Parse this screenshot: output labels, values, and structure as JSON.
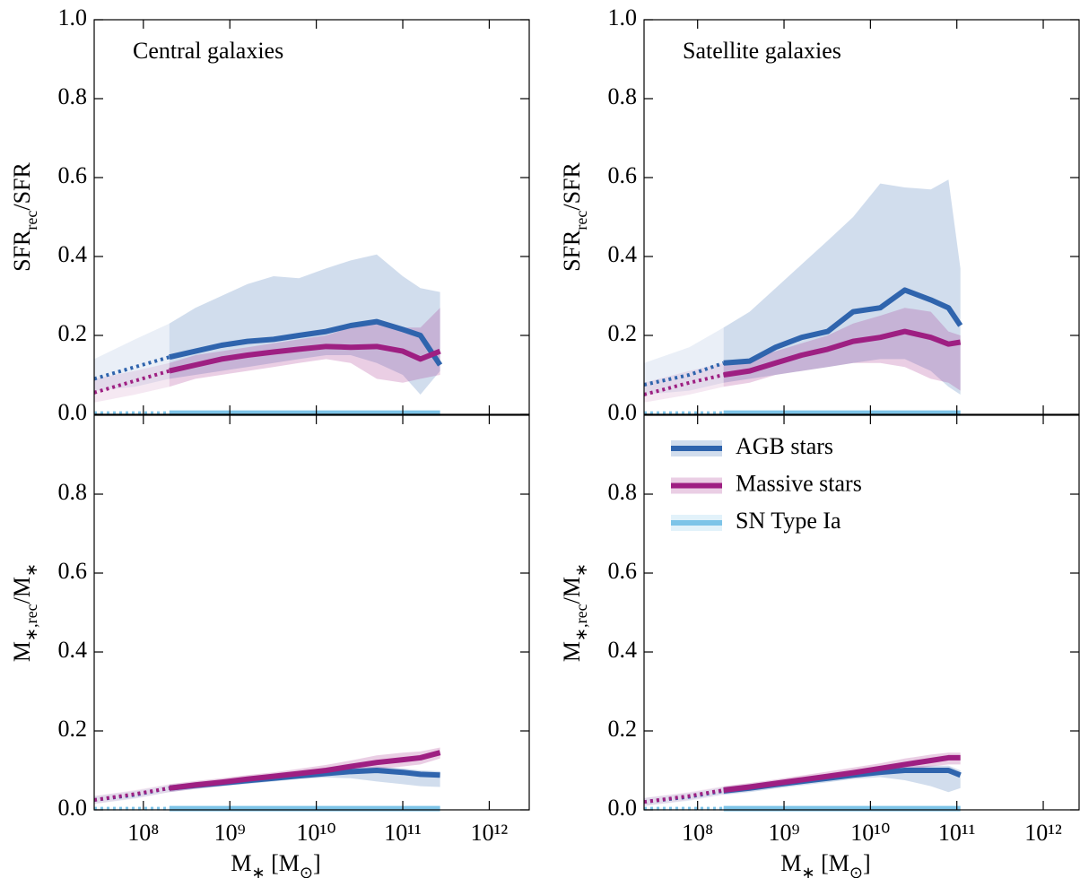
{
  "chart_data": [
    {
      "type": "line",
      "annotation": "Central galaxies",
      "xscale": "log",
      "xlim": [
        27000000.0,
        2900000000000.0
      ],
      "ylim": [
        0,
        1
      ],
      "xticks": [
        100000000.0,
        1000000000.0,
        10000000000.0,
        100000000000.0,
        1000000000000.0
      ],
      "yticks": [
        {
          "value": 0,
          "label": "0.0"
        },
        0.2,
        0.4,
        0.6,
        0.8,
        {
          "value": 1,
          "label": "1.0"
        }
      ],
      "ylabel": [
        {
          "text": "SFR"
        },
        {
          "text": "rec",
          "sub": true
        },
        {
          "text": "/SFR"
        }
      ],
      "dotted_below": 200000000.0,
      "x": [
        27000000.0,
        80000000.0,
        200000000.0,
        400000000.0,
        800000000.0,
        1600000000.0,
        3200000000.0,
        6300000000.0,
        13000000000.0,
        25000000000.0,
        50000000000.0,
        100000000000.0,
        160000000000.0,
        270000000000.0
      ],
      "series": [
        {
          "color": "#2f64ad",
          "values": [
            0.09,
            0.12,
            0.145,
            0.16,
            0.175,
            0.185,
            0.19,
            0.2,
            0.21,
            0.225,
            0.235,
            0.215,
            0.2,
            0.125
          ],
          "lower": [
            0.06,
            0.07,
            0.09,
            0.1,
            0.11,
            0.12,
            0.13,
            0.14,
            0.15,
            0.15,
            0.13,
            0.1,
            0.05,
            0.11
          ],
          "upper": [
            0.14,
            0.19,
            0.23,
            0.27,
            0.3,
            0.33,
            0.35,
            0.345,
            0.37,
            0.39,
            0.405,
            0.35,
            0.32,
            0.31
          ]
        },
        {
          "color": "#9e1f82",
          "values": [
            0.055,
            0.085,
            0.11,
            0.125,
            0.14,
            0.15,
            0.158,
            0.165,
            0.172,
            0.17,
            0.172,
            0.16,
            0.14,
            0.16
          ],
          "lower": [
            0.03,
            0.05,
            0.07,
            0.09,
            0.1,
            0.11,
            0.12,
            0.13,
            0.14,
            0.13,
            0.09,
            0.08,
            0.09,
            0.1
          ],
          "upper": [
            0.09,
            0.11,
            0.13,
            0.15,
            0.16,
            0.17,
            0.18,
            0.19,
            0.2,
            0.22,
            0.23,
            0.22,
            0.22,
            0.27
          ]
        },
        {
          "color": "#7dc4e8",
          "values": [
            0.003,
            0.003,
            0.003,
            0.003,
            0.003,
            0.003,
            0.003,
            0.003,
            0.003,
            0.003,
            0.003,
            0.003,
            0.003,
            0.003
          ],
          "lower": [
            0,
            0,
            0,
            0,
            0,
            0,
            0,
            0,
            0,
            0,
            0,
            0,
            0,
            0
          ],
          "upper": [
            0.006,
            0.006,
            0.006,
            0.006,
            0.006,
            0.006,
            0.006,
            0.006,
            0.006,
            0.006,
            0.006,
            0.006,
            0.006,
            0.006
          ]
        }
      ]
    },
    {
      "type": "line",
      "annotation": "Satellite galaxies",
      "xscale": "log",
      "xlim": [
        24000000.0,
        2600000000000.0
      ],
      "ylim": [
        0,
        1
      ],
      "xticks": [
        100000000.0,
        1000000000.0,
        10000000000.0,
        100000000000.0,
        1000000000000.0
      ],
      "yticks": [
        {
          "value": 0,
          "label": "0.0"
        },
        0.2,
        0.4,
        0.6,
        0.8,
        {
          "value": 1,
          "label": "1.0"
        }
      ],
      "ylabel": [
        {
          "text": "SFR"
        },
        {
          "text": "rec",
          "sub": true
        },
        {
          "text": "/SFR"
        }
      ],
      "dotted_below": 200000000.0,
      "x": [
        24000000.0,
        80000000.0,
        200000000.0,
        400000000.0,
        800000000.0,
        1600000000.0,
        3200000000.0,
        6300000000.0,
        13000000000.0,
        25000000000.0,
        50000000000.0,
        80000000000.0,
        110000000000.0
      ],
      "series": [
        {
          "color": "#2f64ad",
          "values": [
            0.075,
            0.1,
            0.13,
            0.135,
            0.17,
            0.195,
            0.21,
            0.26,
            0.27,
            0.315,
            0.29,
            0.27,
            0.225
          ],
          "lower": [
            0.05,
            0.06,
            0.08,
            0.09,
            0.1,
            0.11,
            0.12,
            0.13,
            0.14,
            0.14,
            0.11,
            0.07,
            0.05
          ],
          "upper": [
            0.13,
            0.17,
            0.22,
            0.26,
            0.32,
            0.38,
            0.44,
            0.5,
            0.585,
            0.575,
            0.57,
            0.595,
            0.37
          ]
        },
        {
          "color": "#9e1f82",
          "values": [
            0.05,
            0.08,
            0.1,
            0.11,
            0.13,
            0.15,
            0.165,
            0.185,
            0.195,
            0.21,
            0.195,
            0.178,
            0.183
          ],
          "lower": [
            0.03,
            0.05,
            0.07,
            0.08,
            0.1,
            0.11,
            0.12,
            0.13,
            0.13,
            0.12,
            0.09,
            0.08,
            0.06
          ],
          "upper": [
            0.08,
            0.11,
            0.13,
            0.14,
            0.16,
            0.18,
            0.2,
            0.23,
            0.25,
            0.27,
            0.26,
            0.21,
            0.2
          ]
        },
        {
          "color": "#7dc4e8",
          "values": [
            0.003,
            0.003,
            0.003,
            0.003,
            0.003,
            0.003,
            0.003,
            0.003,
            0.003,
            0.003,
            0.003,
            0.003,
            0.003
          ],
          "lower": [
            0,
            0,
            0,
            0,
            0,
            0,
            0,
            0,
            0,
            0,
            0,
            0,
            0
          ],
          "upper": [
            0.006,
            0.006,
            0.006,
            0.006,
            0.006,
            0.006,
            0.006,
            0.006,
            0.006,
            0.006,
            0.006,
            0.006,
            0.006
          ]
        }
      ]
    },
    {
      "type": "line",
      "xscale": "log",
      "xlim": [
        27000000.0,
        2900000000000.0
      ],
      "ylim": [
        0,
        1
      ],
      "xticks": [
        {
          "value": 100000000.0,
          "label": "10⁸"
        },
        {
          "value": 1000000000.0,
          "label": "10⁹"
        },
        {
          "value": 10000000000.0,
          "label": "10¹⁰"
        },
        {
          "value": 100000000000.0,
          "label": "10¹¹"
        },
        {
          "value": 1000000000000.0,
          "label": "10¹²"
        }
      ],
      "yticks": [
        {
          "value": 0,
          "label": "0.0"
        },
        0.2,
        0.4,
        0.6,
        0.8
      ],
      "ylabel": [
        {
          "text": "M"
        },
        {
          "text": "∗,rec",
          "sub": true
        },
        {
          "text": "/M"
        },
        {
          "text": "∗",
          "sub": true
        }
      ],
      "xlabel": [
        {
          "text": "M"
        },
        {
          "text": "∗",
          "sub": true
        },
        {
          "text": " [M"
        },
        {
          "text": "⊙",
          "sub": true
        },
        {
          "text": "]"
        }
      ],
      "dotted_below": 200000000.0,
      "x": [
        27000000.0,
        80000000.0,
        200000000.0,
        400000000.0,
        800000000.0,
        1600000000.0,
        3200000000.0,
        6300000000.0,
        13000000000.0,
        25000000000.0,
        50000000000.0,
        100000000000.0,
        160000000000.0,
        270000000000.0
      ],
      "series": [
        {
          "color": "#2f64ad",
          "values": [
            0.025,
            0.038,
            0.055,
            0.062,
            0.068,
            0.074,
            0.08,
            0.086,
            0.092,
            0.097,
            0.1,
            0.095,
            0.09,
            0.088
          ],
          "lower": [
            0.015,
            0.028,
            0.045,
            0.053,
            0.06,
            0.066,
            0.072,
            0.078,
            0.082,
            0.08,
            0.072,
            0.065,
            0.06,
            0.058
          ],
          "upper": [
            0.035,
            0.048,
            0.063,
            0.07,
            0.076,
            0.082,
            0.088,
            0.094,
            0.1,
            0.105,
            0.11,
            0.105,
            0.1,
            0.098
          ]
        },
        {
          "color": "#9e1f82",
          "values": [
            0.025,
            0.04,
            0.055,
            0.063,
            0.07,
            0.078,
            0.085,
            0.092,
            0.1,
            0.11,
            0.12,
            0.127,
            0.132,
            0.145
          ],
          "lower": [
            0.015,
            0.03,
            0.045,
            0.053,
            0.06,
            0.068,
            0.075,
            0.082,
            0.09,
            0.097,
            0.103,
            0.11,
            0.115,
            0.13
          ],
          "upper": [
            0.035,
            0.05,
            0.065,
            0.073,
            0.08,
            0.088,
            0.095,
            0.104,
            0.114,
            0.125,
            0.138,
            0.145,
            0.148,
            0.158
          ]
        },
        {
          "color": "#7dc4e8",
          "values": [
            0.003,
            0.003,
            0.003,
            0.003,
            0.003,
            0.003,
            0.003,
            0.003,
            0.003,
            0.003,
            0.003,
            0.003,
            0.003,
            0.003
          ],
          "lower": [
            0,
            0,
            0,
            0,
            0,
            0,
            0,
            0,
            0,
            0,
            0,
            0,
            0,
            0
          ],
          "upper": [
            0.006,
            0.006,
            0.006,
            0.006,
            0.006,
            0.006,
            0.006,
            0.006,
            0.006,
            0.006,
            0.006,
            0.006,
            0.006,
            0.006
          ]
        }
      ]
    },
    {
      "type": "line",
      "xscale": "log",
      "xlim": [
        24000000.0,
        2600000000000.0
      ],
      "ylim": [
        0,
        1
      ],
      "legend": "upper left",
      "xticks": [
        {
          "value": 100000000.0,
          "label": "10⁸"
        },
        {
          "value": 1000000000.0,
          "label": "10⁹"
        },
        {
          "value": 10000000000.0,
          "label": "10¹⁰"
        },
        {
          "value": 100000000000.0,
          "label": "10¹¹"
        },
        {
          "value": 1000000000000.0,
          "label": "10¹²"
        }
      ],
      "yticks": [
        {
          "value": 0,
          "label": "0.0"
        },
        0.2,
        0.4,
        0.6,
        0.8
      ],
      "ylabel": [
        {
          "text": "M"
        },
        {
          "text": "∗,rec",
          "sub": true
        },
        {
          "text": "/M"
        },
        {
          "text": "∗",
          "sub": true
        }
      ],
      "xlabel": [
        {
          "text": "M"
        },
        {
          "text": "∗",
          "sub": true
        },
        {
          "text": " [M"
        },
        {
          "text": "⊙",
          "sub": true
        },
        {
          "text": "]"
        }
      ],
      "dotted_below": 200000000.0,
      "x": [
        24000000.0,
        80000000.0,
        200000000.0,
        400000000.0,
        800000000.0,
        1600000000.0,
        3200000000.0,
        6300000000.0,
        13000000000.0,
        25000000000.0,
        50000000000.0,
        80000000000.0,
        110000000000.0
      ],
      "series": [
        {
          "name": "AGB stars",
          "color": "#2f64ad",
          "values": [
            0.02,
            0.033,
            0.048,
            0.055,
            0.064,
            0.072,
            0.08,
            0.088,
            0.095,
            0.1,
            0.1,
            0.1,
            0.088
          ],
          "lower": [
            0.01,
            0.023,
            0.038,
            0.045,
            0.054,
            0.062,
            0.07,
            0.078,
            0.083,
            0.075,
            0.06,
            0.045,
            0.055
          ],
          "upper": [
            0.03,
            0.043,
            0.058,
            0.065,
            0.074,
            0.082,
            0.09,
            0.098,
            0.105,
            0.11,
            0.112,
            0.112,
            0.1
          ]
        },
        {
          "name": "Massive stars",
          "color": "#9e1f82",
          "values": [
            0.02,
            0.035,
            0.05,
            0.058,
            0.067,
            0.076,
            0.085,
            0.094,
            0.105,
            0.115,
            0.125,
            0.132,
            0.132
          ],
          "lower": [
            0.01,
            0.025,
            0.04,
            0.048,
            0.057,
            0.066,
            0.074,
            0.082,
            0.092,
            0.1,
            0.11,
            0.115,
            0.115
          ],
          "upper": [
            0.03,
            0.045,
            0.06,
            0.068,
            0.077,
            0.087,
            0.097,
            0.107,
            0.118,
            0.13,
            0.14,
            0.145,
            0.145
          ]
        },
        {
          "name": "SN Type Ia",
          "color": "#7dc4e8",
          "values": [
            0.003,
            0.003,
            0.003,
            0.003,
            0.003,
            0.003,
            0.003,
            0.003,
            0.003,
            0.003,
            0.003,
            0.003,
            0.003
          ],
          "lower": [
            0,
            0,
            0,
            0,
            0,
            0,
            0,
            0,
            0,
            0,
            0,
            0,
            0
          ],
          "upper": [
            0.006,
            0.006,
            0.006,
            0.006,
            0.006,
            0.006,
            0.006,
            0.006,
            0.006,
            0.006,
            0.006,
            0.006,
            0.006
          ]
        }
      ]
    }
  ]
}
